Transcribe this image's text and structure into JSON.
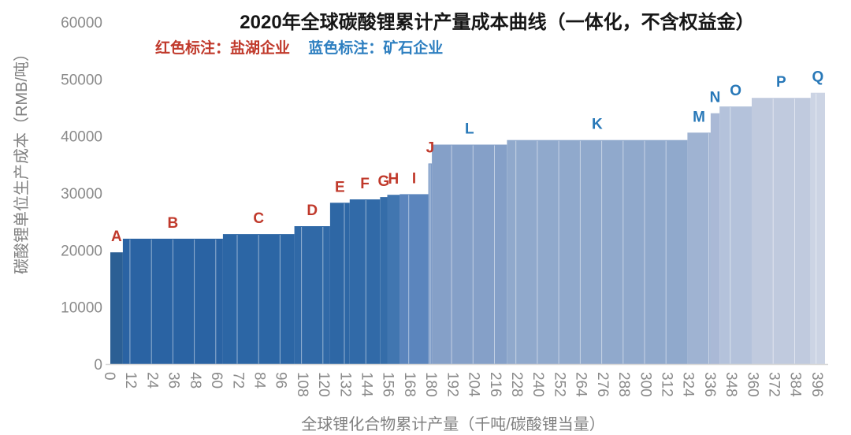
{
  "chart_data": {
    "type": "bar",
    "title": "2020年全球碳酸锂累计产量成本曲线（一体化，不含权益金）",
    "xlabel": "全球锂化合物累计产量（千吨/碳酸锂当量）",
    "ylabel": "碳酸锂单位生产成本（RMB/吨）",
    "xlim": [
      0,
      400
    ],
    "ylim": [
      0,
      60000
    ],
    "grid": "off",
    "legend_position": "top-left",
    "legend": [
      {
        "text": "红色标注：盐湖企业",
        "color": "#c0392b",
        "meaning": "salt-lake producers"
      },
      {
        "text": "蓝色标注：矿石企业",
        "color": "#2e7fc0",
        "meaning": "hard-rock (ore) producers"
      }
    ],
    "label_colors": {
      "salt_lake": "#c0392b",
      "ore": "#2878b8"
    },
    "x_ticks": [
      0,
      12,
      24,
      36,
      48,
      60,
      72,
      84,
      96,
      108,
      120,
      132,
      144,
      156,
      168,
      180,
      192,
      204,
      216,
      228,
      240,
      252,
      264,
      276,
      288,
      300,
      312,
      324,
      336,
      348,
      360,
      372,
      384,
      396
    ],
    "y_ticks": [
      0,
      10000,
      20000,
      30000,
      40000,
      50000,
      60000
    ],
    "segments": [
      {
        "label": "A",
        "company_type": "salt_lake",
        "x0": 0,
        "x1": 7,
        "cost": 19600,
        "color": "#2b5f94"
      },
      {
        "label": "B",
        "company_type": "salt_lake",
        "x0": 7,
        "x1": 63,
        "cost": 22000,
        "color": "#2a63a3"
      },
      {
        "label": "C",
        "company_type": "salt_lake",
        "x0": 63,
        "x1": 103,
        "cost": 22800,
        "color": "#2c66a5"
      },
      {
        "label": "D",
        "company_type": "salt_lake",
        "x0": 103,
        "x1": 123,
        "cost": 24200,
        "color": "#3069a7"
      },
      {
        "label": "E",
        "company_type": "salt_lake",
        "x0": 123,
        "x1": 134,
        "cost": 28300,
        "color": "#2e67a5"
      },
      {
        "label": "F",
        "company_type": "salt_lake",
        "x0": 134,
        "x1": 151,
        "cost": 28900,
        "color": "#316aa8"
      },
      {
        "label": "G",
        "company_type": "salt_lake",
        "x0": 151,
        "x1": 155,
        "cost": 29300,
        "color": "#356da9"
      },
      {
        "label": "H",
        "company_type": "salt_lake",
        "x0": 155,
        "x1": 162,
        "cost": 29700,
        "color": "#4176b0"
      },
      {
        "label": "I",
        "company_type": "salt_lake",
        "x0": 162,
        "x1": 178,
        "cost": 29800,
        "color": "#5b85bd"
      },
      {
        "label": "J",
        "company_type": "salt_lake",
        "x0": 178,
        "x1": 180,
        "cost": 35200,
        "color": "#7e9cc8"
      },
      {
        "label": "L",
        "company_type": "ore",
        "x0": 180,
        "x1": 222,
        "cost": 38500,
        "color": "#85a0c8"
      },
      {
        "label": "K",
        "company_type": "ore",
        "x0": 222,
        "x1": 323,
        "cost": 39300,
        "color": "#90a9cc"
      },
      {
        "label": "M",
        "company_type": "ore",
        "x0": 323,
        "x1": 336,
        "cost": 40600,
        "color": "#9fb3d2"
      },
      {
        "label": "N",
        "company_type": "ore",
        "x0": 336,
        "x1": 341,
        "cost": 44000,
        "color": "#aab9d6"
      },
      {
        "label": "O",
        "company_type": "ore",
        "x0": 341,
        "x1": 359,
        "cost": 45200,
        "color": "#b4c2db"
      },
      {
        "label": "P",
        "company_type": "ore",
        "x0": 359,
        "x1": 392,
        "cost": 46700,
        "color": "#c0cade"
      },
      {
        "label": "Q",
        "company_type": "ore",
        "x0": 392,
        "x1": 400,
        "cost": 47600,
        "color": "#ccd4e4"
      }
    ],
    "style": {
      "axis_text_color": "#8a8a8a",
      "axis_title_color": "#7f7f7f",
      "baseline_color": "#d8d8d8",
      "bar_separator_color": "rgba(255,255,255,0.5)",
      "background": "#ffffff"
    }
  }
}
